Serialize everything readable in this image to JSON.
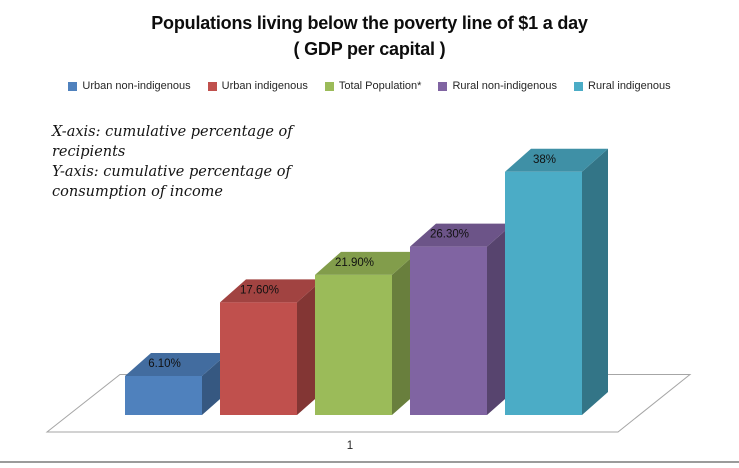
{
  "title": {
    "line1": "Populations living below the poverty line of $1 a day",
    "line2": "( GDP per capital )"
  },
  "legend": {
    "items": [
      {
        "label": "Urban non-indigenous",
        "color": "#4F81BD"
      },
      {
        "label": "Urban indigenous",
        "color": "#C0504D"
      },
      {
        "label": "Total Population*",
        "color": "#9BBB59"
      },
      {
        "label": "Rural non-indigenous",
        "color": "#8064A2"
      },
      {
        "label": "Rural indigenous",
        "color": "#4BACC6"
      }
    ]
  },
  "annotation": {
    "line1": "X-axis: cumulative percentage of",
    "line2": "recipients",
    "line3": "Y-axis: cumulative percentage of",
    "line4": "consumption of income"
  },
  "x_axis": {
    "tick": "1"
  },
  "colors": {
    "floor_stroke": "#a6a6a6",
    "bottom_border": "#9b9b9b",
    "label_text": "#111111"
  },
  "chart_data": {
    "type": "bar",
    "projection": "3d",
    "title": "Populations living below the poverty line of $1 a day ( GDP per capital )",
    "xlabel": "cumulative percentage of recipients",
    "ylabel": "cumulative percentage of consumption of income",
    "categories": [
      "1"
    ],
    "series": [
      {
        "name": "Urban non-indigenous",
        "value": 6.1,
        "label": "6.10%",
        "color": "#4F81BD"
      },
      {
        "name": "Urban indigenous",
        "value": 17.6,
        "label": "17.60%",
        "color": "#C0504D"
      },
      {
        "name": "Total Population*",
        "value": 21.9,
        "label": "21.90%",
        "color": "#9BBB59"
      },
      {
        "name": "Rural non-indigenous",
        "value": 26.3,
        "label": "26.30%",
        "color": "#8064A2"
      },
      {
        "name": "Rural indigenous",
        "value": 38,
        "label": "38%",
        "color": "#4BACC6"
      }
    ],
    "value_unit": "%",
    "ylim": [
      0,
      45
    ],
    "grid": false,
    "data_labels": true,
    "legend_position": "top"
  }
}
